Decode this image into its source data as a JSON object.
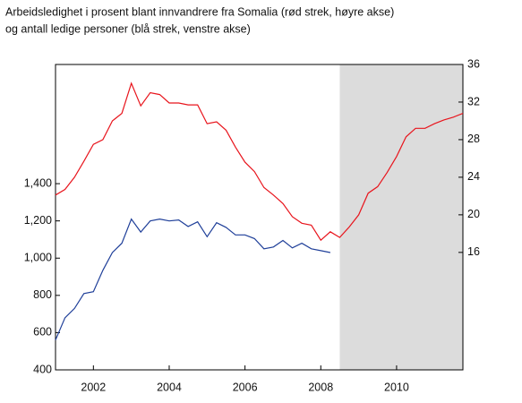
{
  "chart_data": {
    "type": "line",
    "title": [
      "Arbeidsledighet i prosent blant innvandrere fra Somalia (rød strek, høyre akse)",
      "og antall ledige personer (blå strek, venstre akse)"
    ],
    "xlim": [
      2001,
      2011.75
    ],
    "xticks": [
      2002,
      2004,
      2006,
      2008,
      2010
    ],
    "ylim": [
      400,
      2040
    ],
    "yticks": [
      400,
      600,
      800,
      {
        "value": 1000,
        "label": "1,000"
      },
      {
        "value": 1200,
        "label": "1,200"
      },
      {
        "value": 1400,
        "label": "1,400"
      }
    ],
    "y2lim": [
      3.5,
      36
    ],
    "y2ticks": [
      16,
      20,
      24,
      28,
      32,
      36
    ],
    "shaded_region": [
      2008.5,
      2011.75
    ],
    "shade_color": "#dcdcdc",
    "series": [
      {
        "color": "#1f3f99",
        "x": [
          2001,
          2001.25,
          2001.5,
          2001.75,
          2002,
          2002.25,
          2002.5,
          2002.75,
          2003,
          2003.25,
          2003.5,
          2003.75,
          2004,
          2004.25,
          2004.5,
          2004.75,
          2005,
          2005.25,
          2005.5,
          2005.75,
          2006,
          2006.25,
          2006.5,
          2006.75,
          2007,
          2007.25,
          2007.5,
          2007.75,
          2008,
          2008.25
        ],
        "values": [
          560,
          680,
          730,
          810,
          820,
          935,
          1030,
          1080,
          1210,
          1140,
          1200,
          1210,
          1200,
          1205,
          1170,
          1195,
          1115,
          1190,
          1165,
          1125,
          1125,
          1105,
          1050,
          1060,
          1095,
          1055,
          1080,
          1050,
          1040,
          1030
        ]
      },
      {
        "color": "#e8141c",
        "axis": "y2",
        "x": [
          2001,
          2001.25,
          2001.5,
          2001.75,
          2002,
          2002.25,
          2002.5,
          2002.75,
          2003,
          2003.25,
          2003.5,
          2003.75,
          2004,
          2004.25,
          2004.5,
          2004.75,
          2005,
          2005.25,
          2005.5,
          2005.75,
          2006,
          2006.25,
          2006.5,
          2006.75,
          2007,
          2007.25,
          2007.5,
          2007.75,
          2008,
          2008.25,
          2008.5,
          2008.75,
          2009,
          2009.25,
          2009.5,
          2009.75,
          2010,
          2010.25,
          2010.5,
          2010.75,
          2011,
          2011.25,
          2011.5,
          2011.75
        ],
        "values": [
          22.1,
          22.7,
          24.0,
          25.7,
          27.5,
          28.0,
          30.0,
          30.8,
          34.0,
          31.6,
          33.0,
          32.8,
          31.9,
          31.9,
          31.7,
          31.7,
          29.7,
          29.9,
          29.0,
          27.2,
          25.6,
          24.6,
          22.9,
          22.1,
          21.2,
          19.8,
          19.1,
          18.9,
          17.3,
          18.2,
          17.6,
          18.7,
          20.0,
          22.3,
          23.0,
          24.5,
          26.2,
          28.3,
          29.2,
          29.2,
          29.7,
          30.1,
          30.4,
          30.8
        ]
      }
    ]
  }
}
